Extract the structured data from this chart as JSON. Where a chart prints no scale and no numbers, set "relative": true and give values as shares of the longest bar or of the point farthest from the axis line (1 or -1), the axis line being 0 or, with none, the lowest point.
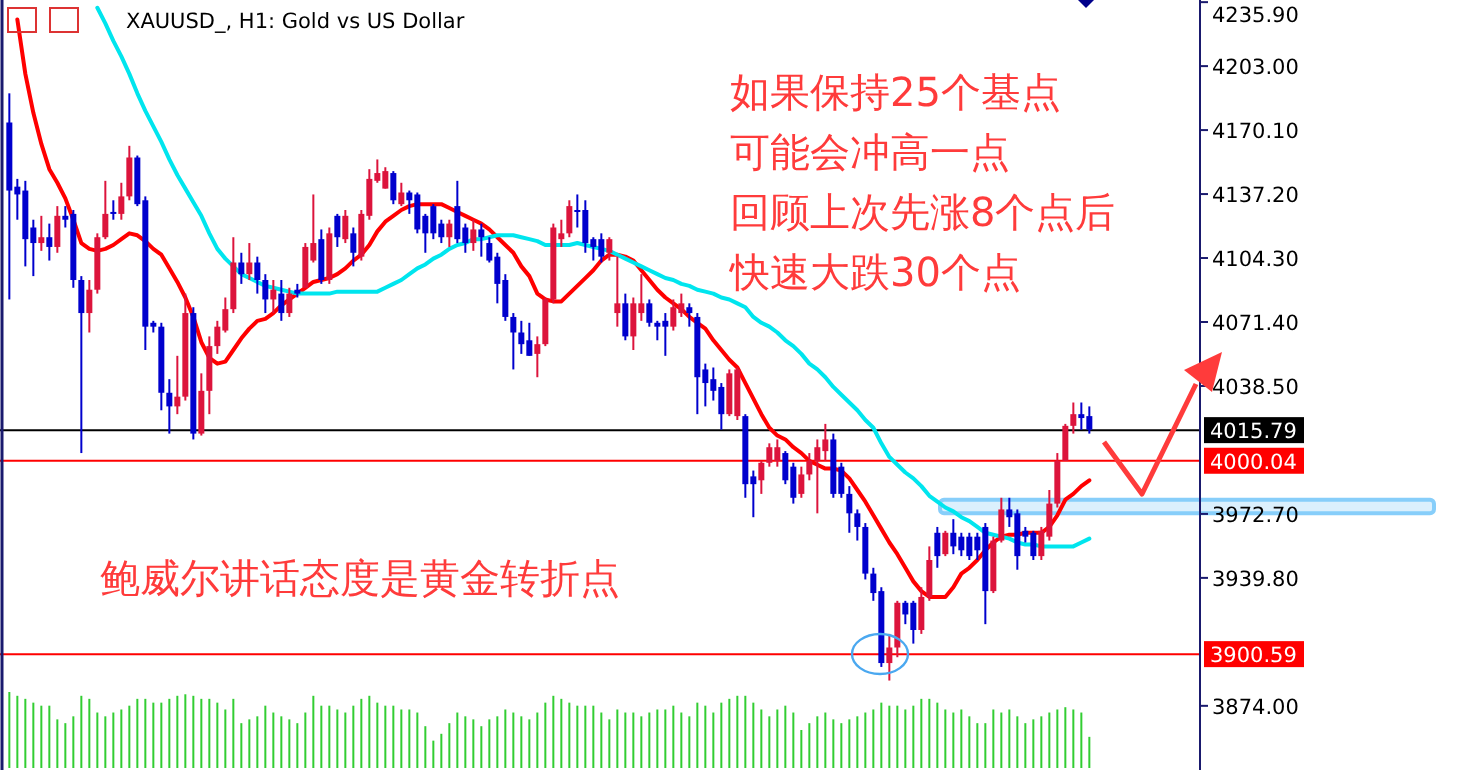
{
  "chart_data": [
    {
      "type": "candlestick",
      "title": "XAUUSD_, H1: Gold vs US Dollar",
      "categories": [
        null,
        null,
        null,
        null,
        null,
        null,
        null,
        null,
        null,
        null,
        null,
        null,
        null,
        null,
        null,
        null,
        null,
        null,
        null,
        null,
        null,
        null,
        null,
        null,
        null,
        null,
        null,
        null,
        null,
        null,
        null,
        null,
        null,
        null,
        null,
        null,
        null,
        null,
        null,
        null,
        null,
        null,
        null,
        null,
        null,
        null,
        null,
        null,
        null,
        null,
        null,
        null,
        null,
        null,
        null,
        null,
        null,
        null,
        null,
        null,
        null,
        null,
        null,
        null,
        null,
        null,
        null,
        null,
        null,
        null,
        null,
        null,
        null,
        null,
        null,
        null,
        null,
        null,
        null,
        null,
        null,
        null,
        null,
        null,
        null,
        null,
        null,
        null,
        null,
        null,
        null,
        null,
        null,
        null,
        null,
        null,
        null,
        null,
        null,
        null,
        null,
        null,
        null,
        null,
        null,
        null,
        null,
        null,
        null,
        null,
        null,
        null,
        null,
        null,
        null,
        null,
        null,
        null,
        null,
        null,
        null,
        null,
        null,
        null,
        null,
        null,
        null,
        null,
        null,
        null,
        null,
        null,
        null,
        null,
        null,
        null
      ],
      "ohlc": [
        [
          4174,
          4189,
          4083,
          4139
        ],
        [
          4141,
          4145,
          4124,
          4137
        ],
        [
          4139,
          4144,
          4100,
          4114
        ],
        [
          4120,
          4124,
          4095,
          4112
        ],
        [
          4112,
          4126,
          4108,
          4115
        ],
        [
          4115,
          4122,
          4103,
          4110
        ],
        [
          4110,
          4131,
          4107,
          4126
        ],
        [
          4126,
          4131,
          4120,
          4124
        ],
        [
          4127,
          4129,
          4089,
          4093
        ],
        [
          4093,
          4095,
          4004,
          4076
        ],
        [
          4076,
          4093,
          4066,
          4088
        ],
        [
          4088,
          4117,
          4086,
          4115
        ],
        [
          4115,
          4144,
          4114,
          4127
        ],
        [
          4128,
          4134,
          4124,
          4127
        ],
        [
          4127,
          4143,
          4124,
          4136
        ],
        [
          4136,
          4162,
          4134,
          4156
        ],
        [
          4156,
          4157,
          4131,
          4132
        ],
        [
          4134,
          4136,
          4057,
          4069
        ],
        [
          4071,
          4072,
          4066,
          4069
        ],
        [
          4069,
          4071,
          4026,
          4035
        ],
        [
          4035,
          4042,
          4014,
          4028
        ],
        [
          4028,
          4054,
          4024,
          4033
        ],
        [
          4033,
          4086,
          4031,
          4076
        ],
        [
          4076,
          4079,
          4011,
          4014
        ],
        [
          4014,
          4045,
          4013,
          4036
        ],
        [
          4036,
          4064,
          4024,
          4059
        ],
        [
          4059,
          4072,
          4055,
          4069
        ],
        [
          4067,
          4084,
          4066,
          4078
        ],
        [
          4078,
          4115,
          4076,
          4102
        ],
        [
          4102,
          4107,
          4091,
          4096
        ],
        [
          4096,
          4112,
          4093,
          4102
        ],
        [
          4102,
          4105,
          4086,
          4093
        ],
        [
          4093,
          4096,
          4076,
          4083
        ],
        [
          4083,
          4093,
          4076,
          4088
        ],
        [
          4086,
          4093,
          4072,
          4076
        ],
        [
          4076,
          4089,
          4074,
          4086
        ],
        [
          4088,
          4091,
          4084,
          4086
        ],
        [
          4089,
          4112,
          4089,
          4110
        ],
        [
          4103,
          4137,
          4102,
          4112
        ],
        [
          4114,
          4119,
          4091,
          4093
        ],
        [
          4093,
          4120,
          4091,
          4117
        ],
        [
          4126,
          4127,
          4110,
          4115
        ],
        [
          4114,
          4129,
          4112,
          4126
        ],
        [
          4117,
          4120,
          4100,
          4107
        ],
        [
          4105,
          4129,
          4103,
          4127
        ],
        [
          4126,
          4150,
          4124,
          4145
        ],
        [
          4144,
          4155,
          4143,
          4148
        ],
        [
          4140,
          4151,
          4140,
          4149
        ],
        [
          4148,
          4149,
          4132,
          4134
        ],
        [
          4132,
          4143,
          4131,
          4138
        ],
        [
          4138,
          4139,
          4127,
          4134
        ],
        [
          4137,
          4138,
          4117,
          4119
        ],
        [
          4126,
          4127,
          4107,
          4117
        ],
        [
          4131,
          4132,
          4114,
          4117
        ],
        [
          4122,
          4124,
          4112,
          4115
        ],
        [
          4115,
          4124,
          4110,
          4122
        ],
        [
          4131,
          4144,
          4112,
          4114
        ],
        [
          4120,
          4122,
          4107,
          4112
        ],
        [
          4112,
          4124,
          4108,
          4119
        ],
        [
          4119,
          4122,
          4105,
          4115
        ],
        [
          4112,
          4115,
          4102,
          4103
        ],
        [
          4105,
          4107,
          4081,
          4091
        ],
        [
          4093,
          4096,
          4072,
          4074
        ],
        [
          4074,
          4076,
          4047,
          4066
        ],
        [
          4066,
          4072,
          4055,
          4060
        ],
        [
          4062,
          4071,
          4054,
          4054
        ],
        [
          4055,
          4064,
          4043,
          4060
        ],
        [
          4060,
          4084,
          4059,
          4083
        ],
        [
          4083,
          4122,
          4081,
          4120
        ],
        [
          4114,
          4124,
          4110,
          4117
        ],
        [
          4117,
          4134,
          4115,
          4131
        ],
        [
          4129,
          4137,
          4120,
          4128
        ],
        [
          4129,
          4134,
          4107,
          4112
        ],
        [
          4114,
          4115,
          4103,
          4110
        ],
        [
          4114,
          4117,
          4102,
          4105
        ],
        [
          4107,
          4115,
          4103,
          4114
        ],
        [
          4076,
          4105,
          4069,
          4081
        ],
        [
          4081,
          4086,
          4062,
          4064
        ],
        [
          4064,
          4084,
          4057,
          4081
        ],
        [
          4076,
          4096,
          4072,
          4081
        ],
        [
          4081,
          4083,
          4069,
          4071
        ],
        [
          4071,
          4072,
          4062,
          4069
        ],
        [
          4072,
          4076,
          4054,
          4069
        ],
        [
          4069,
          4083,
          4067,
          4079
        ],
        [
          4076,
          4086,
          4074,
          4081
        ],
        [
          4079,
          4081,
          4069,
          4076
        ],
        [
          4074,
          4076,
          4024,
          4043
        ],
        [
          4047,
          4050,
          4028,
          4040
        ],
        [
          4042,
          4048,
          4031,
          4036
        ],
        [
          4038,
          4040,
          4016,
          4024
        ],
        [
          4024,
          4047,
          4023,
          4045
        ],
        [
          4023,
          4048,
          4021,
          4047
        ],
        [
          4023,
          4024,
          3981,
          3988
        ],
        [
          3992,
          3995,
          3971,
          3988
        ],
        [
          3990,
          4000,
          3983,
          3999
        ],
        [
          3999,
          4009,
          3997,
          4007
        ],
        [
          4000,
          4011,
          3997,
          4007
        ],
        [
          4004,
          4005,
          3988,
          3990
        ],
        [
          3997,
          3999,
          3978,
          3981
        ],
        [
          3983,
          3997,
          3981,
          3993
        ],
        [
          3993,
          4004,
          3990,
          4000
        ],
        [
          4000,
          4011,
          3973,
          4007
        ],
        [
          4005,
          4019,
          4000,
          4011
        ],
        [
          4011,
          4014,
          3981,
          3983
        ],
        [
          3997,
          3999,
          3981,
          3983
        ],
        [
          3983,
          3987,
          3963,
          3973
        ],
        [
          3973,
          3975,
          3959,
          3966
        ],
        [
          3966,
          3968,
          3939,
          3942
        ],
        [
          3942,
          3945,
          3928,
          3932
        ],
        [
          3933,
          3935,
          3894,
          3896
        ],
        [
          3896,
          3911,
          3887,
          3904
        ],
        [
          3904,
          3928,
          3899,
          3927
        ],
        [
          3927,
          3928,
          3916,
          3921
        ],
        [
          3927,
          3928,
          3906,
          3913
        ],
        [
          3913,
          3935,
          3911,
          3930
        ],
        [
          3930,
          3956,
          3928,
          3949
        ],
        [
          3963,
          3966,
          3945,
          3951
        ],
        [
          3952,
          3964,
          3951,
          3963
        ],
        [
          3963,
          3970,
          3952,
          3956
        ],
        [
          3961,
          3963,
          3951,
          3954
        ],
        [
          3961,
          3963,
          3949,
          3951
        ],
        [
          3961,
          3963,
          3949,
          3954
        ],
        [
          3966,
          3968,
          3916,
          3933
        ],
        [
          3933,
          3961,
          3932,
          3959
        ],
        [
          3959,
          3981,
          3958,
          3975
        ],
        [
          3975,
          3981,
          3966,
          3971
        ],
        [
          3973,
          3975,
          3944,
          3951
        ],
        [
          3964,
          3966,
          3958,
          3961
        ],
        [
          3963,
          3964,
          3949,
          3951
        ],
        [
          3951,
          3966,
          3949,
          3964
        ],
        [
          3961,
          3985,
          3959,
          3978
        ],
        [
          3978,
          4004,
          3976,
          4000
        ],
        [
          4000,
          4019,
          4000,
          4018
        ],
        [
          4018,
          4030,
          4014,
          4024
        ],
        [
          4024,
          4030,
          4016,
          4022
        ],
        [
          4023,
          4028,
          4014,
          4016
        ]
      ],
      "series": [
        {
          "type": "line",
          "color": "#ff0000",
          "values": [
            null,
            4227,
            4199,
            4179,
            4163,
            4150,
            4143,
            4135,
            4124,
            4112,
            4109,
            4108,
            4109,
            4111,
            4114,
            4117,
            4116,
            4113,
            4109,
            4106,
            4099,
            4092,
            4084,
            4074,
            4061,
            4053,
            4050,
            4051,
            4057,
            4063,
            4068,
            4072,
            4073,
            4076,
            4080,
            4083,
            4086,
            4089,
            4092,
            4093,
            4094,
            4096,
            4099,
            4103,
            4106,
            4111,
            4118,
            4123,
            4126,
            4129,
            4131,
            4132,
            4132,
            4132,
            4132,
            4130,
            4128,
            4126,
            4124,
            4122,
            4119,
            4115,
            4111,
            4107,
            4100,
            4095,
            4086,
            4083,
            4082,
            4082,
            4086,
            4090,
            4094,
            4098,
            4103,
            4106,
            4106,
            4105,
            4103,
            4098,
            4093,
            4088,
            4084,
            4081,
            4078,
            4074,
            4071,
            4068,
            4062,
            4057,
            4052,
            4048,
            4040,
            4032,
            4024,
            4017,
            4013,
            4011,
            4007,
            4004,
            4000,
            3998,
            3996,
            3996,
            3995,
            3991,
            3985,
            3979,
            3972,
            3965,
            3958,
            3952,
            3945,
            3938,
            3933,
            3930,
            3930,
            3930,
            3935,
            3942,
            3945,
            3949,
            3954,
            3958,
            3961,
            3962,
            3962,
            3963,
            3963,
            3963,
            3966,
            3972,
            3980,
            3983,
            3987,
            3990
          ]
        },
        {
          "type": "line",
          "color": "#00e5ee",
          "values": [
            null,
            null,
            null,
            null,
            null,
            null,
            null,
            null,
            null,
            null,
            null,
            4233,
            4225,
            4216,
            4208,
            4199,
            4189,
            4180,
            4172,
            4164,
            4155,
            4147,
            4140,
            4133,
            4126,
            4117,
            4109,
            4104,
            4100,
            4096,
            4094,
            4092,
            4090,
            4089,
            4088,
            4087,
            4086,
            4086,
            4086,
            4086,
            4086,
            4087,
            4087,
            4087,
            4087,
            4087,
            4087,
            4089,
            4091,
            4093,
            4096,
            4099,
            4101,
            4104,
            4106,
            4109,
            4111,
            4112,
            4114,
            4114,
            4115,
            4116,
            4116,
            4116,
            4115,
            4114,
            4113,
            4111,
            4111,
            4111,
            4111,
            4112,
            4111,
            4110,
            4109,
            4108,
            4106,
            4104,
            4102,
            4100,
            4098,
            4096,
            4094,
            4093,
            4091,
            4090,
            4088,
            4087,
            4086,
            4084,
            4083,
            4081,
            4079,
            4074,
            4071,
            4069,
            4066,
            4062,
            4059,
            4055,
            4050,
            4047,
            4043,
            4038,
            4034,
            4030,
            4026,
            4021,
            4017,
            4009,
            4002,
            3998,
            3994,
            3991,
            3987,
            3982,
            3979,
            3976,
            3974,
            3971,
            3969,
            3966,
            3963,
            3962,
            3961,
            3960,
            3958,
            3957,
            3957,
            3956,
            3956,
            3956,
            3956,
            3956,
            3958,
            3960
          ]
        }
      ],
      "ylim": [
        3841,
        4237
      ],
      "yticks": [
        {
          "value": 4235.9,
          "label": "4235.90"
        },
        {
          "value": 4203,
          "label": "4203.00"
        },
        {
          "value": 4170.1,
          "label": "4170.10"
        },
        {
          "value": 4137.2,
          "label": "4137.20"
        },
        {
          "value": 4104.3,
          "label": "4104.30"
        },
        {
          "value": 4071.4,
          "label": "4071.40"
        },
        {
          "value": 4038.5,
          "label": "4038.50"
        },
        {
          "value": 3972.7,
          "label": "3972.70"
        },
        {
          "value": 3939.8,
          "label": "3939.80"
        },
        {
          "value": 3874,
          "label": "3874.00"
        }
      ],
      "tick_labels": "y",
      "ref_lines": [
        {
          "axis": "y",
          "value": 4015.79,
          "label": "4015.79",
          "color": "#000000"
        },
        {
          "axis": "y",
          "value": 4000.04,
          "label": "4000.04",
          "color": "#ff0000"
        },
        {
          "axis": "y",
          "value": 3900.59,
          "label": "3900.59",
          "color": "#ff0000"
        }
      ],
      "bands": [
        {
          "axis": "y",
          "from": 3973,
          "to": 3980,
          "color": "#87cefa"
        }
      ],
      "annotations": [
        "如果保持25个基点",
        "可能会冲高一点",
        "回顾上次先涨8个点后",
        "快速大跌30个点",
        "鲍威尔讲话态度是黄金转折点"
      ]
    },
    {
      "type": "bar",
      "relative": true,
      "tick_labels": false,
      "color": "#32cd32",
      "categories": [
        null,
        null,
        null,
        null,
        null,
        null,
        null,
        null,
        null,
        null,
        null,
        null,
        null,
        null,
        null,
        null,
        null,
        null,
        null,
        null,
        null,
        null,
        null,
        null,
        null,
        null,
        null,
        null,
        null,
        null,
        null,
        null,
        null,
        null,
        null,
        null,
        null,
        null,
        null,
        null,
        null,
        null,
        null,
        null,
        null,
        null,
        null,
        null,
        null,
        null,
        null,
        null,
        null,
        null,
        null,
        null,
        null,
        null,
        null,
        null,
        null,
        null,
        null,
        null,
        null,
        null,
        null,
        null,
        null,
        null,
        null,
        null,
        null,
        null,
        null,
        null,
        null,
        null,
        null,
        null,
        null,
        null,
        null,
        null,
        null,
        null,
        null,
        null,
        null,
        null,
        null,
        null,
        null,
        null,
        null,
        null,
        null,
        null,
        null,
        null,
        null,
        null,
        null,
        null,
        null,
        null,
        null,
        null,
        null,
        null,
        null,
        null,
        null,
        null,
        null,
        null,
        null,
        null,
        null,
        null,
        null,
        null,
        null,
        null,
        null,
        null,
        null,
        null,
        null,
        null,
        null,
        null,
        null,
        null,
        null,
        null
      ],
      "values": [
        1.0,
        0.95,
        0.91,
        0.86,
        0.82,
        0.82,
        0.64,
        0.59,
        0.68,
        0.95,
        0.91,
        0.73,
        0.68,
        0.73,
        0.77,
        0.82,
        0.91,
        0.91,
        0.86,
        0.86,
        0.91,
        0.95,
        0.97,
        0.95,
        0.91,
        0.91,
        0.86,
        0.77,
        0.91,
        0.59,
        0.64,
        0.68,
        0.82,
        0.73,
        0.68,
        0.64,
        0.59,
        0.73,
        0.95,
        0.82,
        0.82,
        0.77,
        0.73,
        0.82,
        0.91,
        0.95,
        0.86,
        0.82,
        0.82,
        0.77,
        0.77,
        0.73,
        0.55,
        0.36,
        0.45,
        0.59,
        0.73,
        0.68,
        0.64,
        0.55,
        0.64,
        0.68,
        0.77,
        0.73,
        0.68,
        0.64,
        0.73,
        0.86,
        0.95,
        0.91,
        0.86,
        0.82,
        0.82,
        0.82,
        0.73,
        0.64,
        0.77,
        0.73,
        0.73,
        0.68,
        0.73,
        0.77,
        0.77,
        0.82,
        0.73,
        0.68,
        0.86,
        0.82,
        0.73,
        0.86,
        0.91,
        0.95,
        0.95,
        0.86,
        0.77,
        0.68,
        0.77,
        0.82,
        0.73,
        0.5,
        0.59,
        0.68,
        0.73,
        0.64,
        0.59,
        0.64,
        0.68,
        0.73,
        0.77,
        0.86,
        0.82,
        0.82,
        0.77,
        0.82,
        0.91,
        0.91,
        0.86,
        0.77,
        0.73,
        0.77,
        0.68,
        0.59,
        0.59,
        0.77,
        0.73,
        0.77,
        0.68,
        0.59,
        0.64,
        0.68,
        0.73,
        0.77,
        0.8,
        0.77,
        0.73,
        0.41
      ]
    }
  ]
}
